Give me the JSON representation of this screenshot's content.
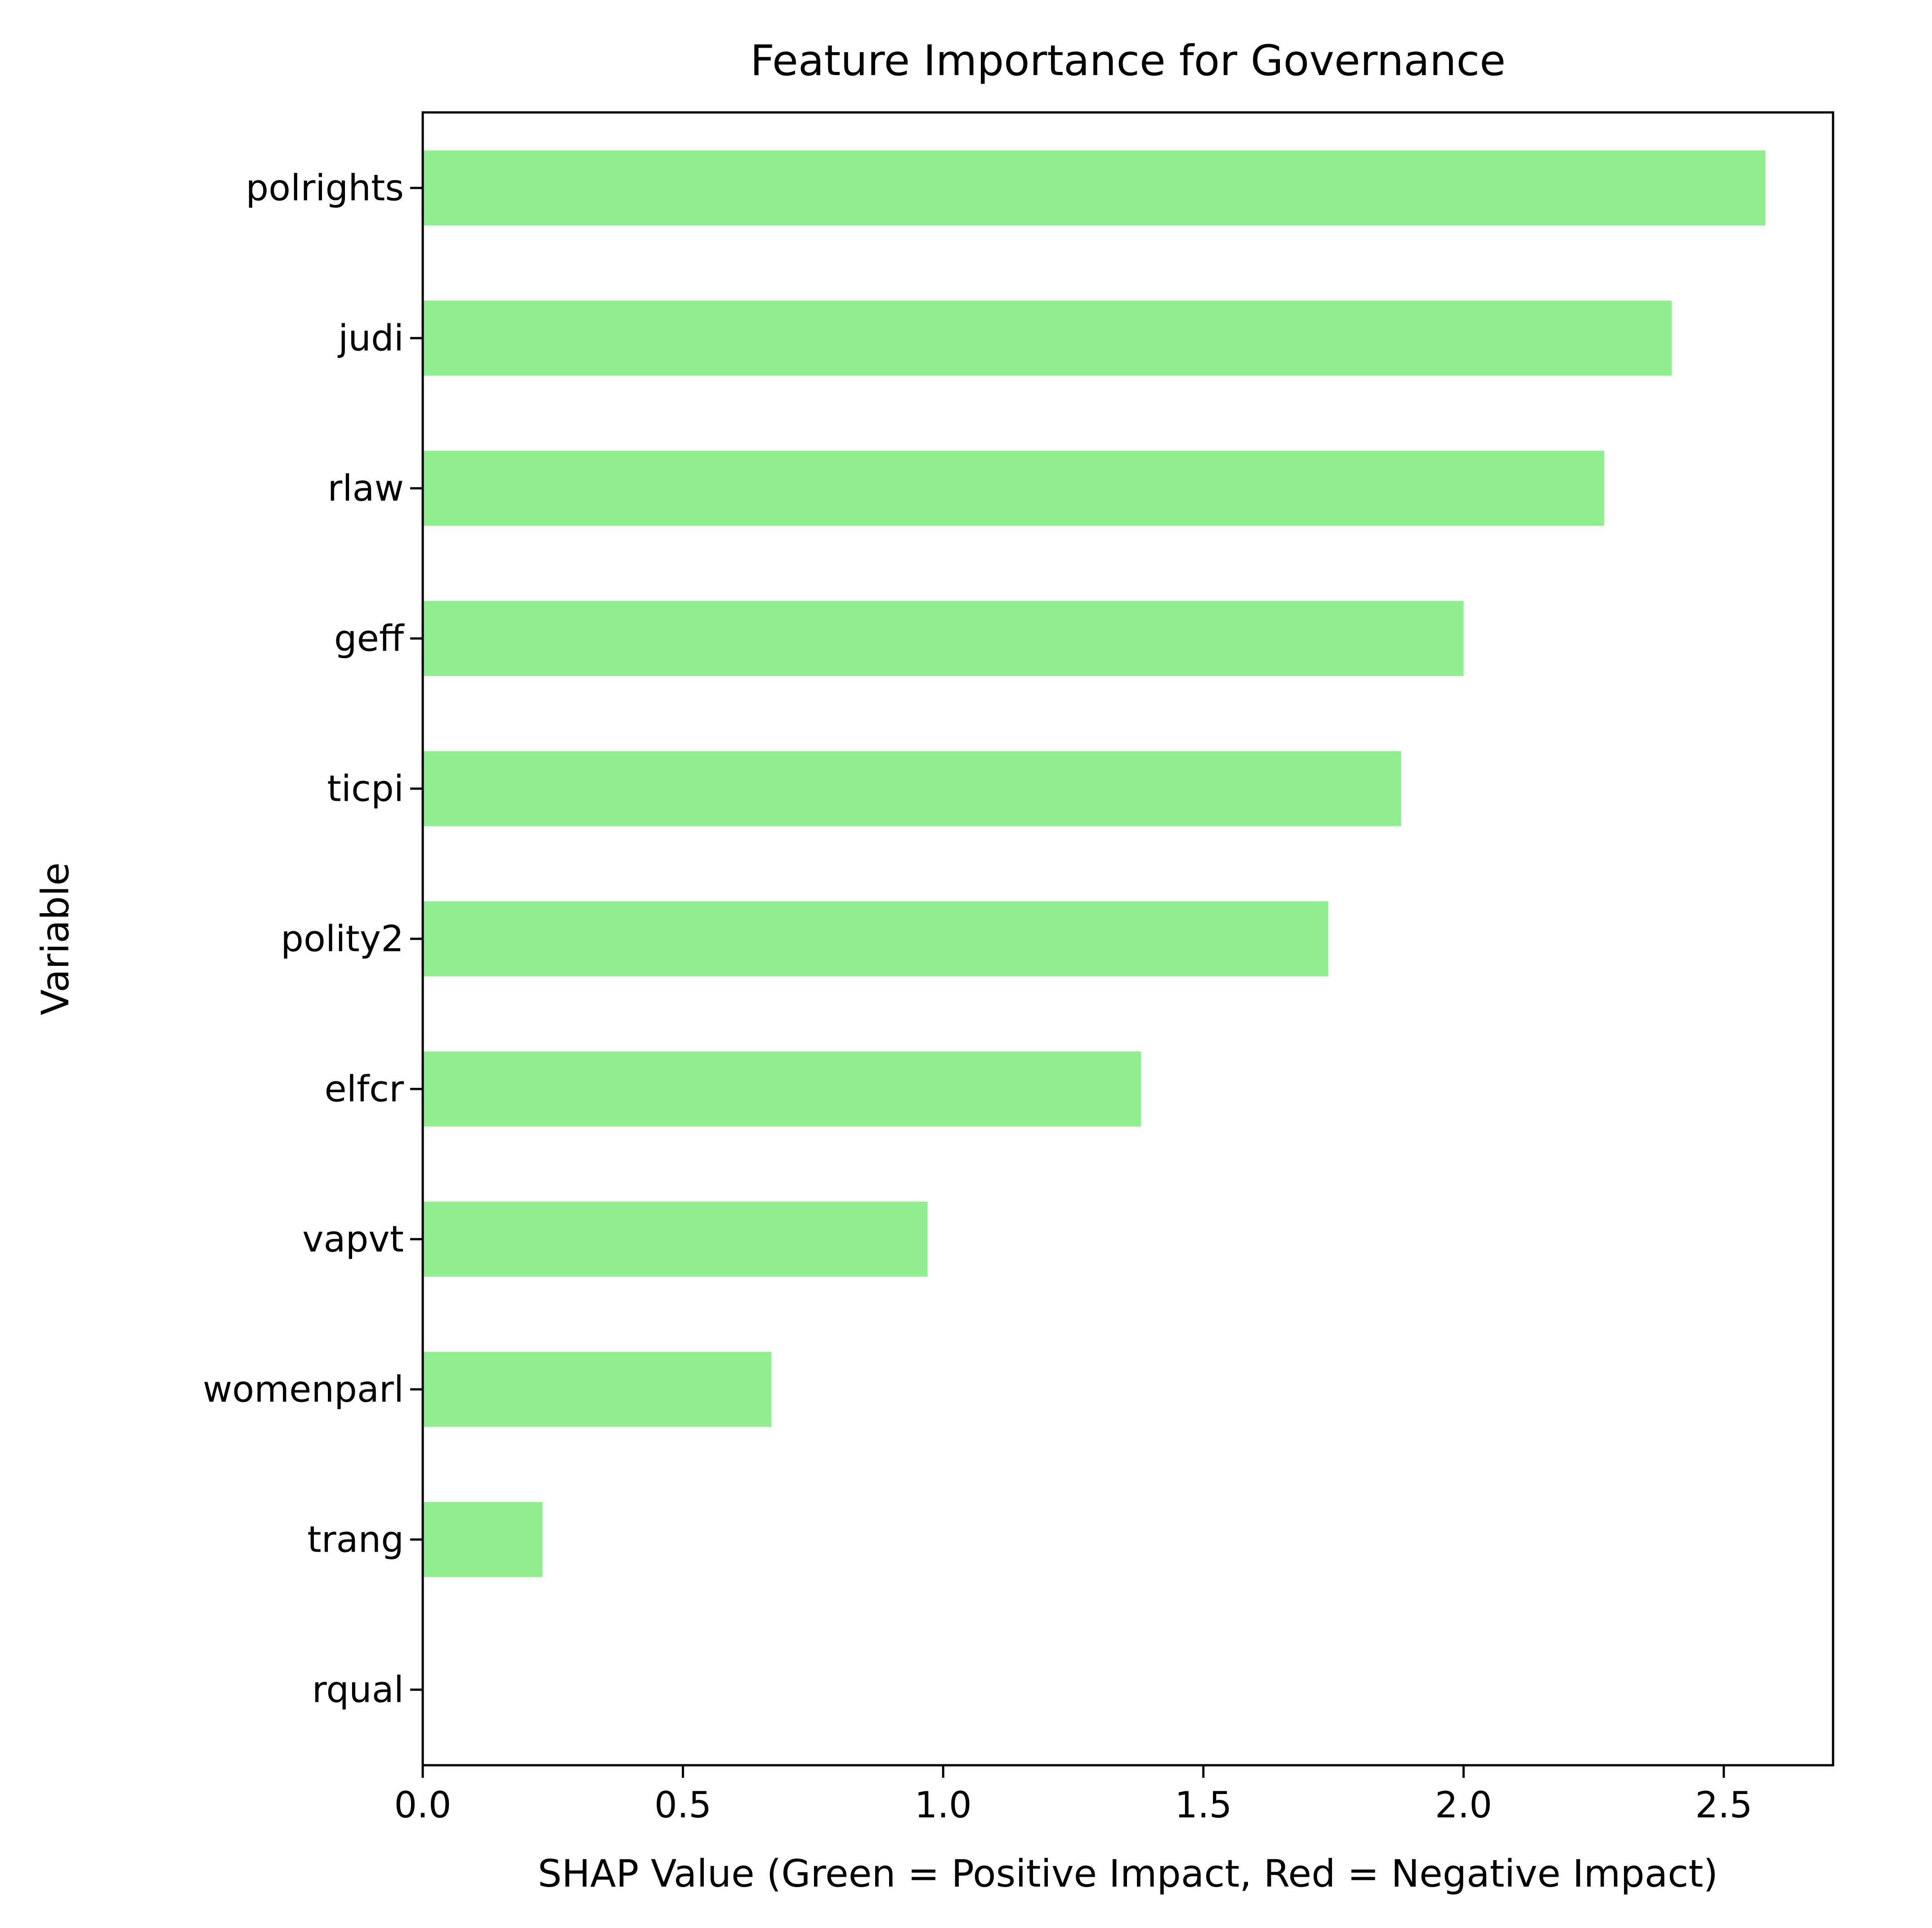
{
  "colors": {
    "positive_bar": "#90ee90",
    "negative_bar": "#ff0000",
    "axis": "#000000",
    "background": "#ffffff"
  },
  "chart_data": {
    "type": "bar",
    "orientation": "horizontal",
    "title": "Feature Importance for Governance",
    "xlabel": "SHAP Value (Green = Positive Impact, Red = Negative Impact)",
    "ylabel": "Variable",
    "categories": [
      "polrights",
      "judi",
      "rlaw",
      "geff",
      "ticpi",
      "polity2",
      "elfcr",
      "vapvt",
      "womenparl",
      "trang",
      "rqual"
    ],
    "values": [
      2.58,
      2.4,
      2.27,
      2.0,
      1.88,
      1.74,
      1.38,
      0.97,
      0.67,
      0.23,
      0.0
    ],
    "xlim": [
      0,
      2.71
    ],
    "xticks": [
      0.0,
      0.5,
      1.0,
      1.5,
      2.0,
      2.5
    ],
    "xtick_labels": [
      "0.0",
      "0.5",
      "1.0",
      "1.5",
      "2.0",
      "2.5"
    ],
    "grid": false,
    "legend": "none"
  }
}
